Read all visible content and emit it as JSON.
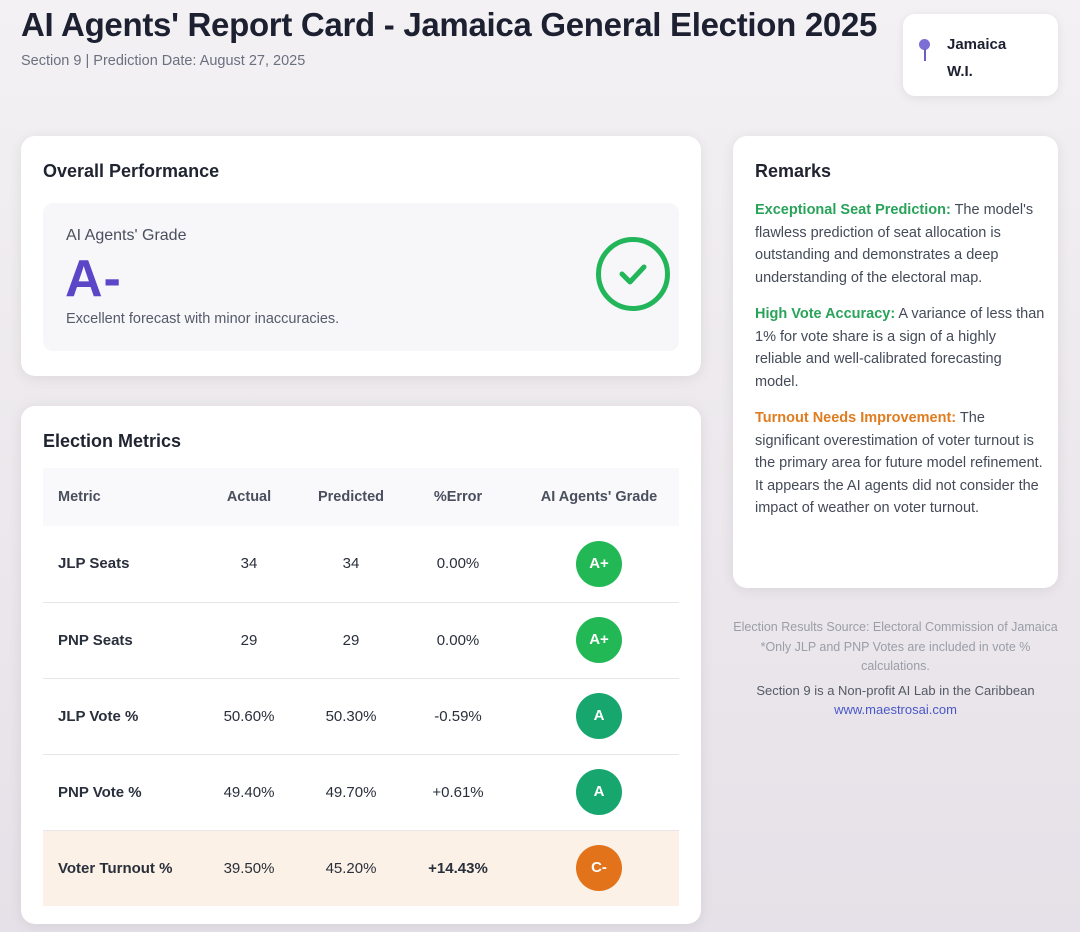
{
  "header": {
    "title": "AI Agents' Report Card - Jamaica General Election 2025",
    "subtitle": "Section 9 | Prediction Date: August 27, 2025"
  },
  "location": {
    "icon": "map-pin-icon",
    "line1": "Jamaica",
    "line2": "W.I."
  },
  "overall": {
    "title": "Overall Performance",
    "grade_label": "AI Agents' Grade",
    "grade": "A-",
    "description": "Excellent forecast with minor inaccuracies.",
    "icon": "check-circle-icon",
    "accent_color": "#5b46c8",
    "check_color": "#22b55a"
  },
  "metrics": {
    "title": "Election Metrics",
    "columns": [
      "Metric",
      "Actual",
      "Predicted",
      "%Error",
      "AI Agents' Grade"
    ],
    "rows": [
      {
        "metric": "JLP Seats",
        "actual": "34",
        "predicted": "34",
        "error": "0.00%",
        "grade": "A+",
        "grade_color": "#23b856"
      },
      {
        "metric": "PNP Seats",
        "actual": "29",
        "predicted": "29",
        "error": "0.00%",
        "grade": "A+",
        "grade_color": "#23b856"
      },
      {
        "metric": "JLP Vote %",
        "actual": "50.60%",
        "predicted": "50.30%",
        "error": "-0.59%",
        "grade": "A",
        "grade_color": "#17a76e"
      },
      {
        "metric": "PNP Vote %",
        "actual": "49.40%",
        "predicted": "49.70%",
        "error": "+0.61%",
        "grade": "A",
        "grade_color": "#17a76e"
      },
      {
        "metric": "Voter Turnout %",
        "actual": "39.50%",
        "predicted": "45.20%",
        "error": "+14.43%",
        "grade": "C-",
        "grade_color": "#e2731a"
      }
    ]
  },
  "remarks": {
    "title": "Remarks",
    "items": [
      {
        "lead": "Exceptional Seat Prediction:",
        "text": " The model's flawless prediction of seat allocation is outstanding and demonstrates a deep understanding of the electoral map."
      },
      {
        "lead": "High Vote Accuracy:",
        "text": " A variance of less than 1% for vote share is a sign of a highly reliable and well-calibrated forecasting model."
      },
      {
        "lead": "Turnout Needs Improvement:",
        "text": " The significant overestimation of voter turnout is the primary area for future model refinement. It appears the AI agents did not consider the impact of weather on voter turnout."
      }
    ]
  },
  "footer": {
    "source": "Election Results Source: Electoral Commission of Jamaica",
    "note": "*Only JLP and PNP Votes are included in vote % calculations.",
    "org": "Section 9 is a Non-profit AI Lab in the Caribbean",
    "url": "www.maestrosai.com"
  }
}
